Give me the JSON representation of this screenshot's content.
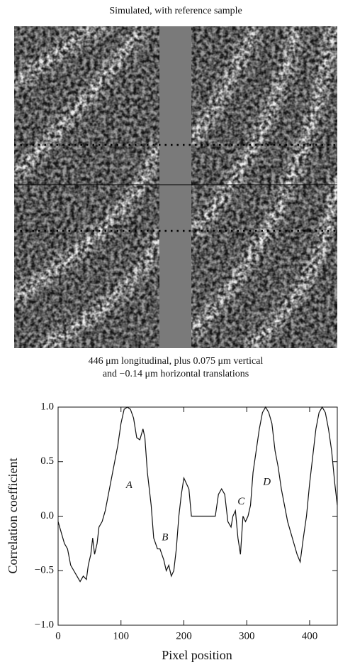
{
  "chart_data": {
    "type": "line",
    "image_title": "Simulated, with reference sample",
    "caption_lines": [
      "446 μm longitudinal, plus 0.075 μm vertical",
      "and −0.14 μm horizontal translations"
    ],
    "xlabel": "Pixel position",
    "ylabel": "Correlation coefficient",
    "xlim": [
      0,
      444
    ],
    "ylim": [
      -1,
      1
    ],
    "xticks": [
      0,
      100,
      200,
      300,
      400
    ],
    "yticks": [
      {
        "value": -1,
        "label": "−1.0"
      },
      {
        "value": -0.5,
        "label": "−0.5"
      },
      {
        "value": 0,
        "label": "0.0"
      },
      {
        "value": 0.5,
        "label": "0.5"
      },
      {
        "value": 1,
        "label": "1.0"
      }
    ],
    "color": "#111111",
    "annotations": [
      {
        "text": "A",
        "x": 113,
        "y": 0.28
      },
      {
        "text": "B",
        "x": 170,
        "y": -0.2
      },
      {
        "text": "C",
        "x": 291,
        "y": 0.13
      },
      {
        "text": "D",
        "x": 332,
        "y": 0.31
      }
    ],
    "x": [
      0,
      5,
      10,
      15,
      20,
      25,
      30,
      35,
      40,
      45,
      48,
      52,
      55,
      58,
      62,
      65,
      70,
      75,
      80,
      85,
      90,
      95,
      100,
      105,
      110,
      115,
      120,
      125,
      130,
      135,
      138,
      142,
      148,
      152,
      158,
      162,
      168,
      172,
      176,
      180,
      184,
      188,
      192,
      196,
      200,
      204,
      208,
      212,
      250,
      255,
      260,
      265,
      270,
      275,
      278,
      282,
      286,
      290,
      294,
      298,
      302,
      306,
      310,
      315,
      320,
      325,
      330,
      335,
      340,
      345,
      350,
      355,
      360,
      365,
      370,
      375,
      380,
      385,
      390,
      395,
      400,
      405,
      410,
      415,
      420,
      425,
      430,
      435,
      440,
      444
    ],
    "values": [
      -0.05,
      -0.15,
      -0.25,
      -0.3,
      -0.45,
      -0.5,
      -0.55,
      -0.6,
      -0.55,
      -0.58,
      -0.45,
      -0.35,
      -0.2,
      -0.35,
      -0.25,
      -0.1,
      -0.05,
      0.05,
      0.2,
      0.35,
      0.5,
      0.65,
      0.85,
      0.98,
      1.0,
      0.98,
      0.9,
      0.72,
      0.7,
      0.8,
      0.72,
      0.4,
      0.1,
      -0.2,
      -0.3,
      -0.3,
      -0.4,
      -0.5,
      -0.45,
      -0.55,
      -0.5,
      -0.3,
      0.0,
      0.2,
      0.35,
      0.3,
      0.25,
      0.0,
      0.0,
      0.2,
      0.25,
      0.2,
      -0.05,
      -0.1,
      0.0,
      0.05,
      -0.2,
      -0.35,
      0.0,
      -0.05,
      0.0,
      0.1,
      0.4,
      0.6,
      0.8,
      0.95,
      1.0,
      0.95,
      0.85,
      0.6,
      0.45,
      0.25,
      0.1,
      -0.05,
      -0.15,
      -0.25,
      -0.35,
      -0.42,
      -0.2,
      0.0,
      0.3,
      0.55,
      0.8,
      0.95,
      1.0,
      0.95,
      0.8,
      0.6,
      0.3,
      0.1
    ]
  }
}
